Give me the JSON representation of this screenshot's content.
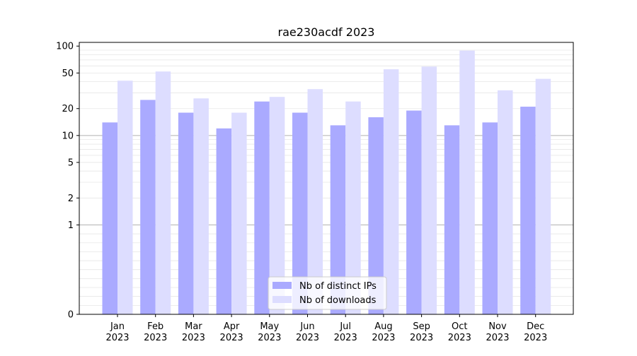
{
  "chart_data": {
    "type": "bar",
    "title": "rae230acdf 2023",
    "xlabel": "",
    "ylabel": "",
    "y_scale": "symlog",
    "ylim": [
      0,
      110
    ],
    "y_ticks": [
      0,
      1,
      2,
      5,
      10,
      20,
      50,
      100
    ],
    "y_tick_labels": [
      "0",
      "1",
      "2",
      "5",
      "10",
      "20",
      "50",
      "100"
    ],
    "categories": [
      "Jan\n2023",
      "Feb\n2023",
      "Mar\n2023",
      "Apr\n2023",
      "May\n2023",
      "Jun\n2023",
      "Jul\n2023",
      "Aug\n2023",
      "Sep\n2023",
      "Oct\n2023",
      "Nov\n2023",
      "Dec\n2023"
    ],
    "series": [
      {
        "name": "Nb of distinct IPs",
        "color": "#aaaaff",
        "values": [
          14,
          25,
          18,
          12,
          24,
          18,
          13,
          16,
          19,
          13,
          14,
          21
        ]
      },
      {
        "name": "Nb of downloads",
        "color": "#ddddff",
        "values": [
          41,
          52,
          26,
          18,
          27,
          33,
          24,
          55,
          59,
          89,
          32,
          43
        ]
      }
    ],
    "grid": true,
    "legend_position": "bottom-center"
  }
}
